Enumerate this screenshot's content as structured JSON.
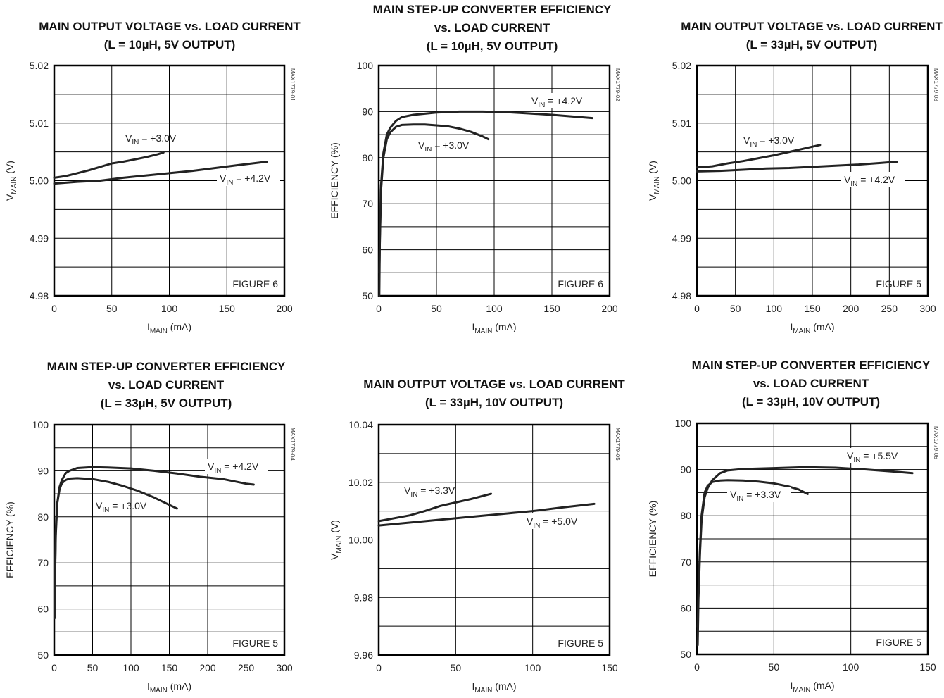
{
  "chart_data": [
    {
      "id": "MAX1779-01",
      "type": "line",
      "title_lines": [
        "MAIN OUTPUT VOLTAGE vs. LOAD CURRENT",
        "(L = 10µH, 5V OUTPUT)"
      ],
      "xlabel": {
        "main": "I",
        "sub": "MAIN",
        "rest": " (mA)"
      },
      "ylabel": {
        "main": "V",
        "sub": "MAIN",
        "rest": " (V)"
      },
      "xlim": [
        0,
        200
      ],
      "ylim": [
        4.98,
        5.02
      ],
      "xticks": [
        0,
        50,
        100,
        150,
        200
      ],
      "yticks": [
        4.98,
        4.99,
        5.0,
        5.01,
        5.02
      ],
      "ytick_labels": [
        "4.98",
        "4.99",
        "5.00",
        "5.01",
        "5.02"
      ],
      "x_grid": [
        50,
        100,
        150
      ],
      "y_grid": [
        4.985,
        4.99,
        4.995,
        5.0,
        5.005,
        5.01,
        5.015
      ],
      "figure_label": "FIGURE 6",
      "series": [
        {
          "name_main": "V",
          "name_sub": "IN",
          "name_rest": " = +3.0V",
          "x": [
            0,
            10,
            20,
            30,
            40,
            50,
            60,
            70,
            80,
            90,
            95
          ],
          "y": [
            5.0005,
            5.0008,
            5.0013,
            5.0018,
            5.0024,
            5.003,
            5.0033,
            5.0037,
            5.0041,
            5.0046,
            5.0049
          ]
        },
        {
          "name_main": "V",
          "name_sub": "IN",
          "name_rest": " = +4.2V",
          "x": [
            0,
            20,
            40,
            60,
            80,
            100,
            120,
            140,
            160,
            185
          ],
          "y": [
            4.9995,
            4.9998,
            5.0,
            5.0005,
            5.0009,
            5.0013,
            5.0017,
            5.0022,
            5.0027,
            5.0033
          ]
        }
      ]
    },
    {
      "id": "MAX1779-02",
      "type": "line",
      "title_lines": [
        "MAIN STEP-UP CONVERTER EFFICIENCY",
        "vs. LOAD CURRENT",
        "(L = 10µH, 5V OUTPUT)"
      ],
      "xlabel": {
        "main": "I",
        "sub": "MAIN",
        "rest": " (mA)"
      },
      "ylabel": {
        "main": "EFFICIENCY (%)",
        "sub": "",
        "rest": ""
      },
      "xlim": [
        0,
        200
      ],
      "ylim": [
        50,
        100
      ],
      "xticks": [
        0,
        50,
        100,
        150,
        200
      ],
      "yticks": [
        50,
        60,
        70,
        80,
        90,
        100
      ],
      "ytick_labels": [
        "50",
        "60",
        "70",
        "80",
        "90",
        "100"
      ],
      "x_grid": [
        50,
        100,
        150
      ],
      "y_grid": [
        55,
        60,
        65,
        70,
        75,
        80,
        85,
        90,
        95
      ],
      "figure_label": "FIGURE 6",
      "series": [
        {
          "name_main": "V",
          "name_sub": "IN",
          "name_rest": " = +4.2V",
          "x": [
            0.5,
            1,
            2,
            4,
            7,
            10,
            15,
            20,
            30,
            50,
            70,
            90,
            110,
            130,
            150,
            170,
            185
          ],
          "y": [
            50,
            63,
            74,
            81,
            85,
            86.5,
            88,
            88.8,
            89.3,
            89.8,
            90,
            90,
            89.9,
            89.6,
            89.3,
            88.9,
            88.6
          ]
        },
        {
          "name_main": "V",
          "name_sub": "IN",
          "name_rest": " = +3.0V",
          "x": [
            0.5,
            1,
            2,
            4,
            7,
            10,
            15,
            20,
            30,
            40,
            50,
            60,
            70,
            80,
            90,
            95
          ],
          "y": [
            55,
            62,
            73,
            80,
            84,
            85.5,
            86.7,
            87.1,
            87.2,
            87.2,
            87.0,
            86.8,
            86.3,
            85.6,
            84.6,
            84.0
          ]
        }
      ]
    },
    {
      "id": "MAX1779-03",
      "type": "line",
      "title_lines": [
        "MAIN OUTPUT VOLTAGE vs. LOAD CURRENT",
        "(L = 33µH, 5V OUTPUT)"
      ],
      "xlabel": {
        "main": "I",
        "sub": "MAIN",
        "rest": " (mA)"
      },
      "ylabel": {
        "main": "V",
        "sub": "MAIN",
        "rest": " (V)"
      },
      "xlim": [
        0,
        300
      ],
      "ylim": [
        4.98,
        5.02
      ],
      "xticks": [
        0,
        50,
        100,
        150,
        200,
        250,
        300
      ],
      "yticks": [
        4.98,
        4.99,
        5.0,
        5.01,
        5.02
      ],
      "ytick_labels": [
        "4.98",
        "4.99",
        "5.00",
        "5.01",
        "5.02"
      ],
      "x_grid": [
        50,
        100,
        150,
        200,
        250
      ],
      "y_grid": [
        4.985,
        4.99,
        4.995,
        5.0,
        5.005,
        5.01,
        5.015
      ],
      "figure_label": "FIGURE 5",
      "series": [
        {
          "name_main": "V",
          "name_sub": "IN",
          "name_rest": " = +3.0V",
          "x": [
            0,
            20,
            40,
            60,
            80,
            100,
            120,
            140,
            160
          ],
          "y": [
            5.0023,
            5.0025,
            5.003,
            5.0034,
            5.0039,
            5.0044,
            5.005,
            5.0056,
            5.0062
          ]
        },
        {
          "name_main": "V",
          "name_sub": "IN",
          "name_rest": " = +4.2V",
          "x": [
            0,
            30,
            60,
            90,
            120,
            150,
            180,
            210,
            240,
            260
          ],
          "y": [
            5.0016,
            5.0017,
            5.0019,
            5.0021,
            5.0022,
            5.0024,
            5.0026,
            5.0028,
            5.0031,
            5.0033
          ]
        }
      ]
    },
    {
      "id": "MAX1779-04",
      "type": "line",
      "title_lines": [
        "MAIN STEP-UP CONVERTER EFFICIENCY",
        "vs. LOAD CURRENT",
        "(L = 33µH, 5V OUTPUT)"
      ],
      "xlabel": {
        "main": "I",
        "sub": "MAIN",
        "rest": " (mA)"
      },
      "ylabel": {
        "main": "EFFICIENCY (%)",
        "sub": "",
        "rest": ""
      },
      "xlim": [
        0,
        300
      ],
      "ylim": [
        50,
        100
      ],
      "xticks": [
        0,
        50,
        100,
        150,
        200,
        250,
        300
      ],
      "yticks": [
        50,
        60,
        70,
        80,
        90,
        100
      ],
      "ytick_labels": [
        "50",
        "60",
        "70",
        "80",
        "90",
        "100"
      ],
      "x_grid": [
        50,
        100,
        150,
        200,
        250
      ],
      "y_grid": [
        55,
        60,
        65,
        70,
        75,
        80,
        85,
        90,
        95
      ],
      "figure_label": "FIGURE 5",
      "series": [
        {
          "name_main": "V",
          "name_sub": "IN",
          "name_rest": " = +4.2V",
          "x": [
            0.5,
            1,
            2,
            4,
            7,
            10,
            15,
            20,
            30,
            50,
            70,
            100,
            130,
            160,
            190,
            220,
            250,
            260
          ],
          "y": [
            58,
            66,
            76,
            83,
            86.5,
            88,
            89.5,
            90,
            90.6,
            90.8,
            90.7,
            90.5,
            90.0,
            89.4,
            88.7,
            88.2,
            87.2,
            87.0
          ]
        },
        {
          "name_main": "V",
          "name_sub": "IN",
          "name_rest": " = +3.0V",
          "x": [
            0.5,
            1,
            2,
            4,
            7,
            10,
            15,
            20,
            30,
            50,
            70,
            90,
            110,
            130,
            150,
            160
          ],
          "y": [
            60,
            67,
            77,
            83,
            86,
            87.3,
            88,
            88.3,
            88.4,
            88.2,
            87.6,
            86.7,
            85.6,
            84.2,
            82.6,
            81.8
          ]
        }
      ]
    },
    {
      "id": "MAX1779-05",
      "type": "line",
      "title_lines": [
        "MAIN OUTPUT VOLTAGE vs. LOAD CURRENT",
        "(L = 33µH, 10V OUTPUT)"
      ],
      "xlabel": {
        "main": "I",
        "sub": "MAIN",
        "rest": " (mA)"
      },
      "ylabel": {
        "main": "V",
        "sub": "MAIN",
        "rest": " (V)"
      },
      "xlim": [
        0,
        150
      ],
      "ylim": [
        9.96,
        10.04
      ],
      "xticks": [
        0,
        50,
        100,
        150
      ],
      "yticks": [
        9.96,
        9.98,
        10.0,
        10.02,
        10.04
      ],
      "ytick_labels": [
        "9.96",
        "9.98",
        "10.00",
        "10.02",
        "10.04"
      ],
      "x_grid": [
        50,
        100
      ],
      "y_grid": [
        9.97,
        9.98,
        9.99,
        10.0,
        10.01,
        10.02,
        10.03
      ],
      "figure_label": "FIGURE 5",
      "series": [
        {
          "name_main": "V",
          "name_sub": "IN",
          "name_rest": " = +3.3V",
          "x": [
            0,
            10,
            20,
            30,
            40,
            50,
            60,
            73
          ],
          "y": [
            10.0065,
            10.0075,
            10.0085,
            10.01,
            10.0118,
            10.013,
            10.0142,
            10.016
          ]
        },
        {
          "name_main": "V",
          "name_sub": "IN",
          "name_rest": " = +5.0V",
          "x": [
            0,
            20,
            40,
            60,
            80,
            100,
            120,
            140
          ],
          "y": [
            10.005,
            10.006,
            10.007,
            10.008,
            10.009,
            10.01,
            10.0113,
            10.0125
          ]
        }
      ]
    },
    {
      "id": "MAX1779-06",
      "type": "line",
      "title_lines": [
        "MAIN STEP-UP CONVERTER EFFICIENCY",
        "vs. LOAD CURRENT",
        "(L = 33µH, 10V OUTPUT)"
      ],
      "xlabel": {
        "main": "I",
        "sub": "MAIN",
        "rest": " (mA)"
      },
      "ylabel": {
        "main": "EFFICIENCY (%)",
        "sub": "",
        "rest": ""
      },
      "xlim": [
        0,
        150
      ],
      "ylim": [
        50,
        100
      ],
      "xticks": [
        0,
        50,
        100,
        150
      ],
      "yticks": [
        50,
        60,
        70,
        80,
        90,
        100
      ],
      "ytick_labels": [
        "50",
        "60",
        "70",
        "80",
        "90",
        "100"
      ],
      "x_grid": [
        50,
        100
      ],
      "y_grid": [
        55,
        60,
        65,
        70,
        75,
        80,
        85,
        90,
        95
      ],
      "figure_label": "FIGURE 5",
      "series": [
        {
          "name_main": "V",
          "name_sub": "IN",
          "name_rest": " = +5.5V",
          "x": [
            0.5,
            1,
            2,
            3,
            5,
            7,
            10,
            15,
            20,
            30,
            50,
            70,
            90,
            110,
            130,
            140
          ],
          "y": [
            52,
            62,
            72,
            79,
            84,
            86,
            87.7,
            89.2,
            89.8,
            90.1,
            90.3,
            90.5,
            90.4,
            90.0,
            89.5,
            89.2
          ]
        },
        {
          "name_main": "V",
          "name_sub": "IN",
          "name_rest": " = +3.3V",
          "x": [
            0.5,
            1,
            2,
            3,
            5,
            7,
            10,
            15,
            20,
            30,
            40,
            50,
            60,
            66,
            72
          ],
          "y": [
            56,
            64,
            73,
            80,
            85,
            86.5,
            87.3,
            87.6,
            87.7,
            87.6,
            87.4,
            87.0,
            86.3,
            85.7,
            84.7
          ]
        }
      ]
    }
  ]
}
